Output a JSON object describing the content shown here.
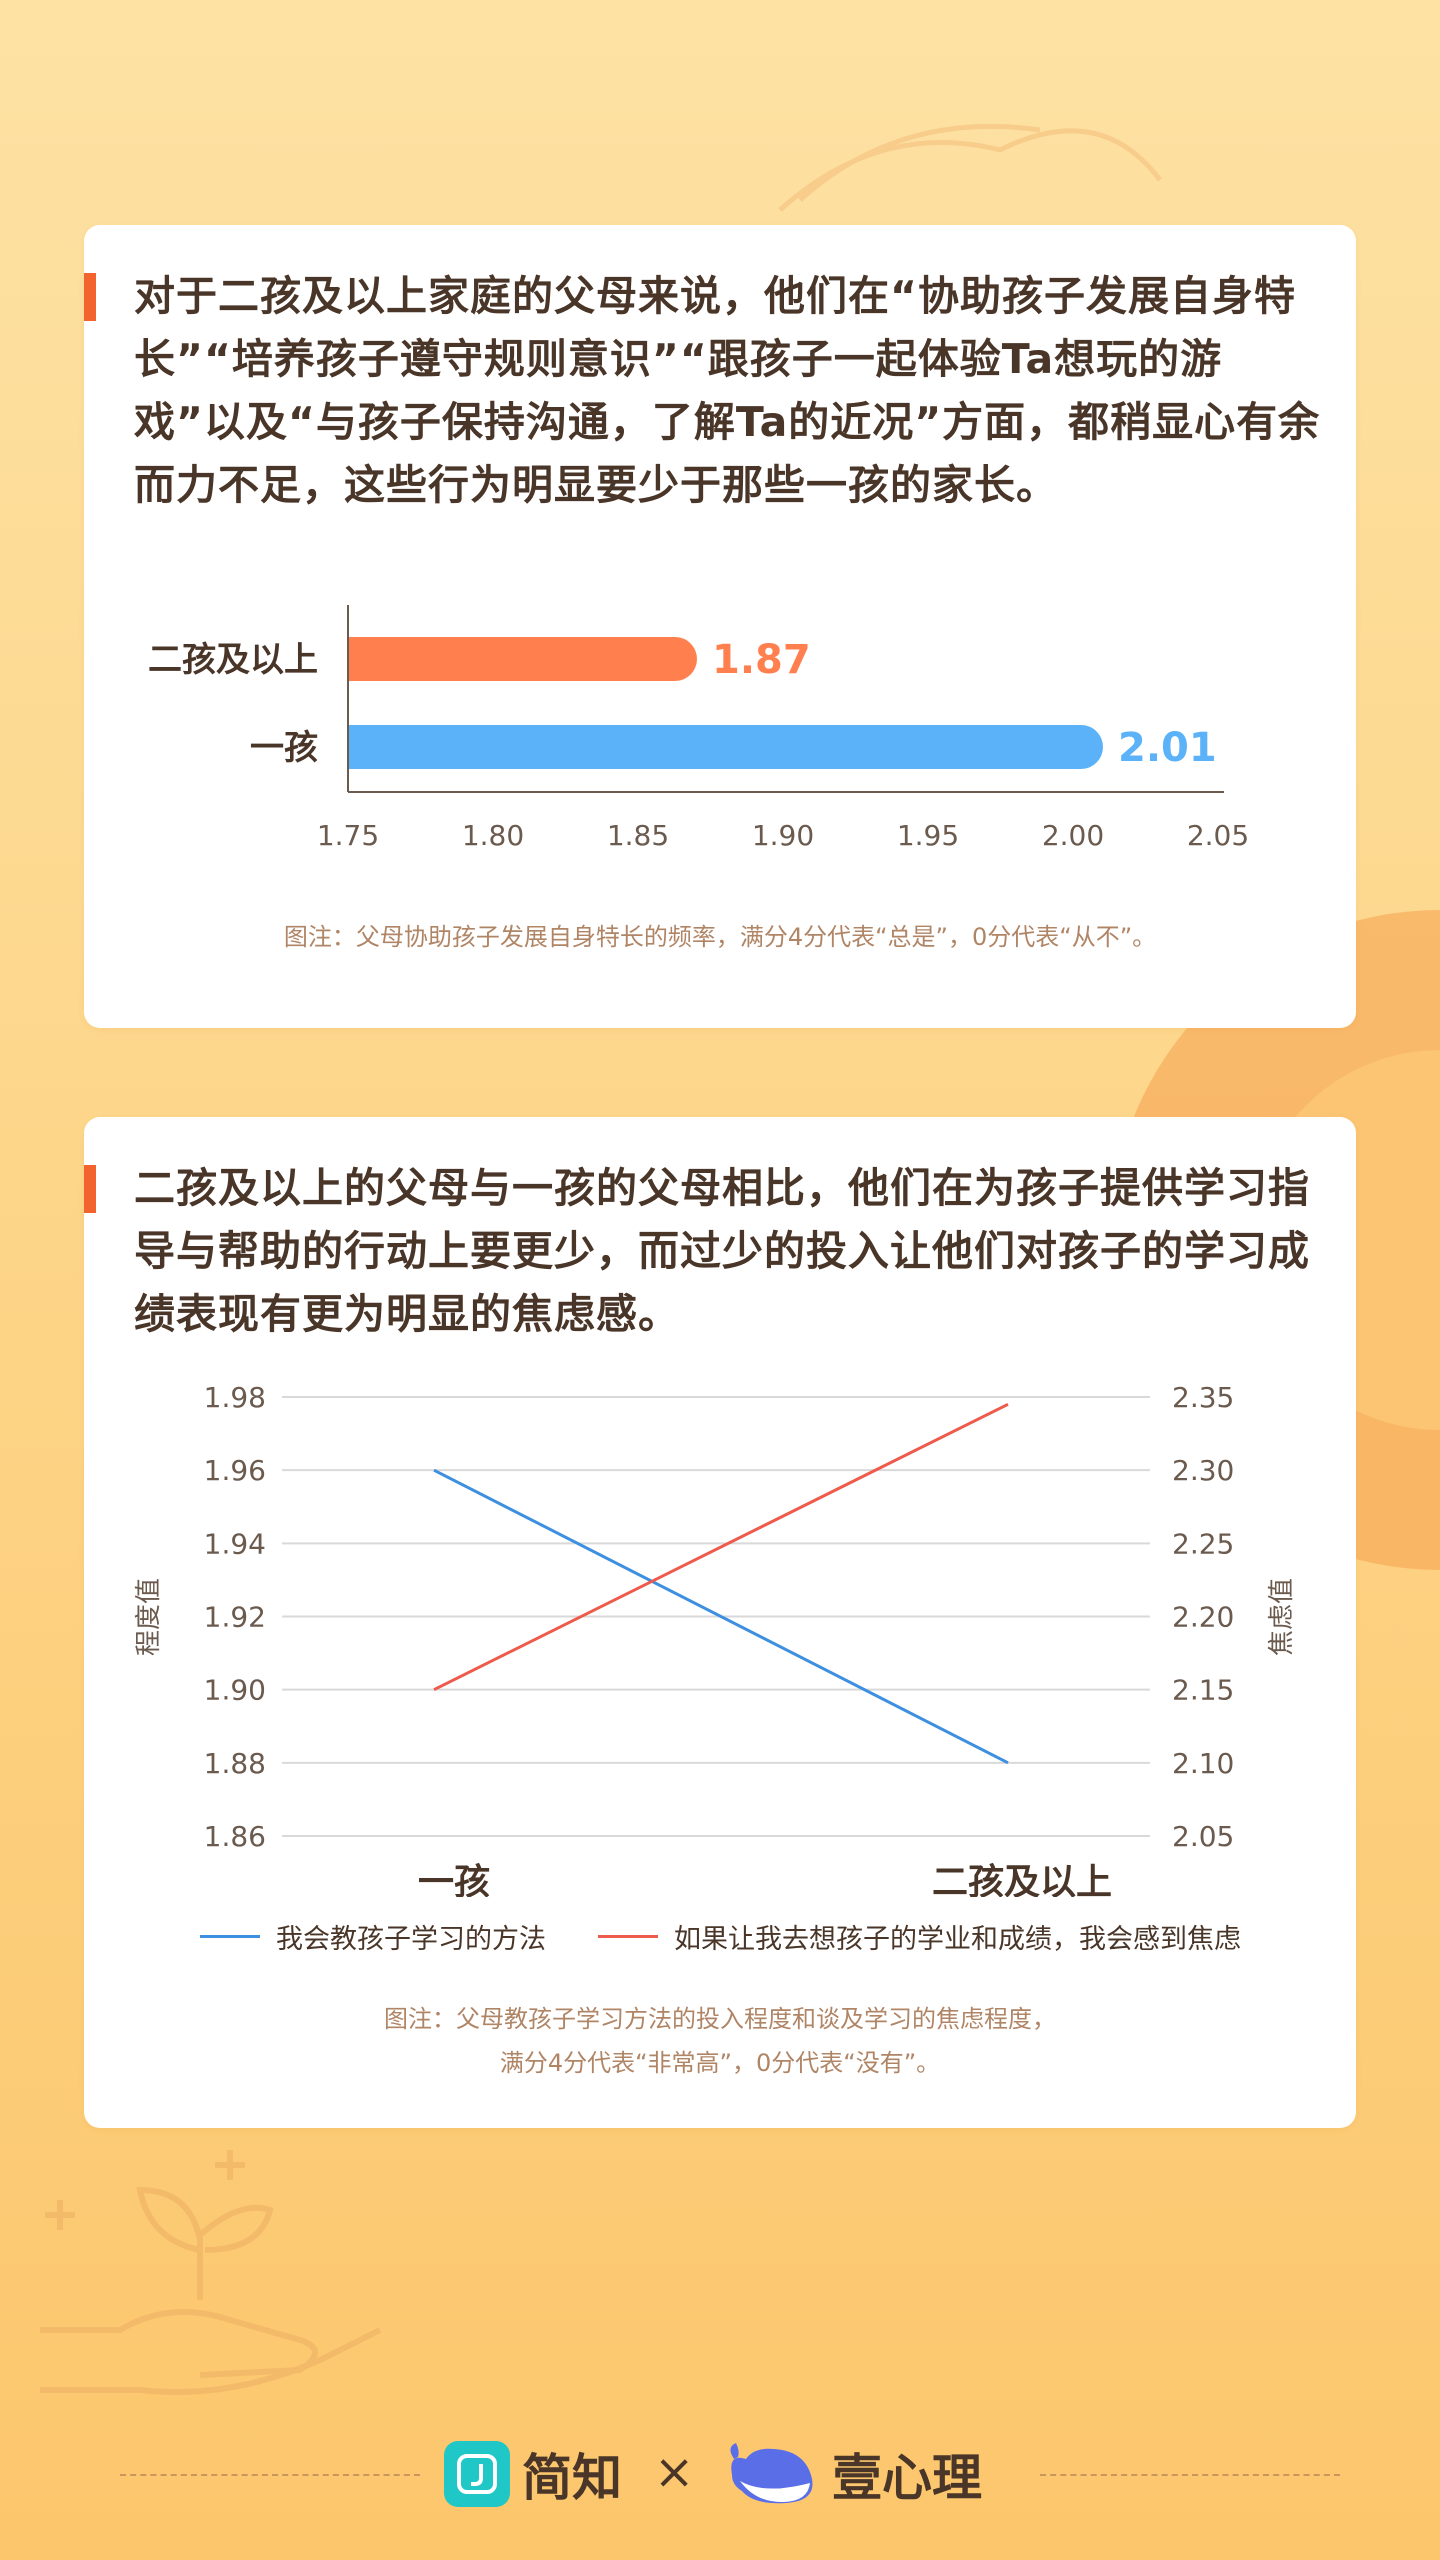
{
  "colors": {
    "accent": "#f2632e",
    "bar_orange": "#ff7f4f",
    "bar_blue": "#5bb2f8",
    "line_blue": "#3d8fe0",
    "line_red": "#ee5a4b",
    "text_dark": "#4a3628",
    "note": "#b08566"
  },
  "card1": {
    "headline": "对于二孩及以上家庭的父母来说，他们在“协助孩子发展自身特长”“培养孩子遵守规则意识”“跟孩子一起体验Ta想玩的游戏”以及“与孩子保持沟通，了解Ta的近况”方面，都稍显心有余而力不足，这些行为明显要少于那些一孩的家长。",
    "note": "图注：父母协助孩子发展自身特长的频率，满分4分代表“总是”，0分代表“从不”。"
  },
  "card2": {
    "headline": "二孩及以上的父母与一孩的父母相比，他们在为孩子提供学习指导与帮助的行动上要更少，而过少的投入让他们对孩子的学习成绩表现有更为明显的焦虑感。",
    "note_line1": "图注：父母教孩子学习方法的投入程度和谈及学习的焦虑程度，",
    "note_line2": "满分4分代表“非常高”，0分代表“没有”。"
  },
  "chart_data": [
    {
      "type": "bar",
      "orientation": "horizontal",
      "categories": [
        "二孩及以上",
        "一孩"
      ],
      "values": [
        1.87,
        2.01
      ],
      "data_labels": [
        "1.87",
        "2.01"
      ],
      "bar_colors": [
        "#ff7f4f",
        "#5bb2f8"
      ],
      "xlim": [
        1.75,
        2.05
      ],
      "x_ticks": [
        "1.75",
        "1.80",
        "1.85",
        "1.90",
        "1.95",
        "2.00",
        "2.05"
      ],
      "grid": false
    },
    {
      "type": "line",
      "categories": [
        "一孩",
        "二孩及以上"
      ],
      "series": [
        {
          "name": "我会教孩子学习的方法",
          "axis": "left",
          "values": [
            1.96,
            1.88
          ],
          "color": "#3d8fe0"
        },
        {
          "name": "如果让我去想孩子的学业和成绩，我会感到焦虑",
          "axis": "right",
          "values": [
            2.15,
            2.345
          ],
          "color": "#ee5a4b"
        }
      ],
      "ylabel_left": "程度值",
      "ylabel_right": "焦虑值",
      "ylim_left": [
        1.86,
        1.98
      ],
      "ylim_right": [
        2.05,
        2.35
      ],
      "left_ticks": [
        "1.98",
        "1.96",
        "1.94",
        "1.92",
        "1.90",
        "1.88",
        "1.86"
      ],
      "right_ticks": [
        "2.35",
        "2.30",
        "2.25",
        "2.20",
        "2.15",
        "2.10",
        "2.05"
      ],
      "grid": true,
      "legend_position": "bottom"
    }
  ],
  "footer": {
    "brand1": "简知",
    "times": "×",
    "brand2": "壹心理"
  }
}
